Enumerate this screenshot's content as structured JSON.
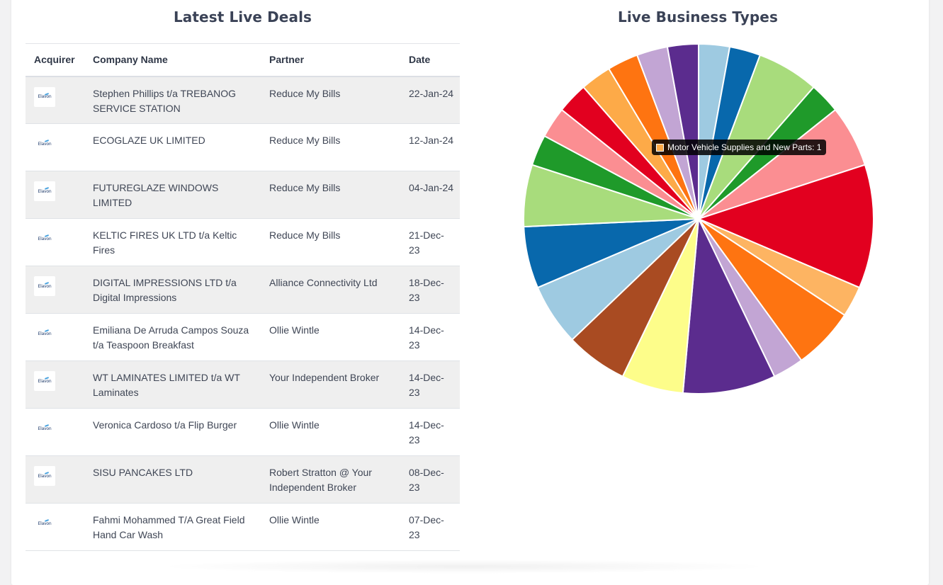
{
  "deals": {
    "title": "Latest Live Deals",
    "columns": [
      "Acquirer",
      "Company Name",
      "Partner",
      "Date"
    ],
    "rows": [
      {
        "acquirer": "Elavon",
        "company": "Stephen Phillips t/a TREBANOG SERVICE STATION",
        "partner": "Reduce My Bills",
        "date": "22-Jan-24"
      },
      {
        "acquirer": "Elavon",
        "company": "ECOGLAZE UK LIMITED",
        "partner": "Reduce My Bills",
        "date": "12-Jan-24"
      },
      {
        "acquirer": "Elavon",
        "company": "FUTUREGLAZE WINDOWS LIMITED",
        "partner": "Reduce My Bills",
        "date": "04-Jan-24"
      },
      {
        "acquirer": "Elavon",
        "company": "KELTIC FIRES UK LTD t/a Keltic Fires",
        "partner": "Reduce My Bills",
        "date": "21-Dec-23"
      },
      {
        "acquirer": "Elavon",
        "company": "DIGITAL IMPRESSIONS LTD t/a Digital Impressions",
        "partner": "Alliance Connectivity Ltd",
        "date": "18-Dec-23"
      },
      {
        "acquirer": "Elavon",
        "company": "Emiliana De Arruda Campos Souza t/a Teaspoon Breakfast",
        "partner": "Ollie Wintle",
        "date": "14-Dec-23"
      },
      {
        "acquirer": "Elavon",
        "company": "WT LAMINATES LIMITED t/a WT Laminates",
        "partner": "Your Independent Broker",
        "date": "14-Dec-23"
      },
      {
        "acquirer": "Elavon",
        "company": "Veronica Cardoso t/a Flip Burger",
        "partner": "Ollie Wintle",
        "date": "14-Dec-23"
      },
      {
        "acquirer": "Elavon",
        "company": "SISU PANCAKES LTD",
        "partner": "Robert Stratton @ Your Independent Broker",
        "date": "08-Dec-23"
      },
      {
        "acquirer": "Elavon",
        "company": "Fahmi Mohammed T/A Great Field Hand Car Wash",
        "partner": "Ollie Wintle",
        "date": "07-Dec-23"
      }
    ]
  },
  "chart_data": {
    "type": "pie",
    "title": "Live Business Types",
    "start_angle_deg": 0,
    "slices": [
      {
        "value": 1,
        "color": "#9ecae1"
      },
      {
        "value": 1,
        "color": "#0868ac"
      },
      {
        "value": 2,
        "color": "#a8dc7c"
      },
      {
        "value": 1,
        "color": "#1f9a2a"
      },
      {
        "value": 2,
        "color": "#fb8e92"
      },
      {
        "value": 4,
        "color": "#e2001f"
      },
      {
        "value": 1,
        "color": "#fdb462"
      },
      {
        "value": 2,
        "color": "#fe7411"
      },
      {
        "value": 1,
        "color": "#c2a5d4"
      },
      {
        "value": 3,
        "color": "#5b2c8e"
      },
      {
        "value": 2,
        "color": "#fdfd8a"
      },
      {
        "value": 2,
        "color": "#a94b22"
      },
      {
        "value": 2,
        "color": "#9ecae1"
      },
      {
        "value": 2,
        "color": "#0868ac"
      },
      {
        "value": 2,
        "color": "#a8dc7c"
      },
      {
        "value": 1,
        "color": "#1f9a2a"
      },
      {
        "value": 1,
        "color": "#fb8e92"
      },
      {
        "value": 1,
        "color": "#e2001f"
      },
      {
        "value": 1,
        "color": "#fdaa48"
      },
      {
        "value": 1,
        "color": "#fe7411"
      },
      {
        "value": 1,
        "color": "#c2a5d4"
      },
      {
        "value": 1,
        "color": "#5b2c8e"
      }
    ],
    "tooltip": {
      "label": "Motor Vehicle Supplies and New Parts: 1",
      "color": "#fdaa48"
    }
  }
}
